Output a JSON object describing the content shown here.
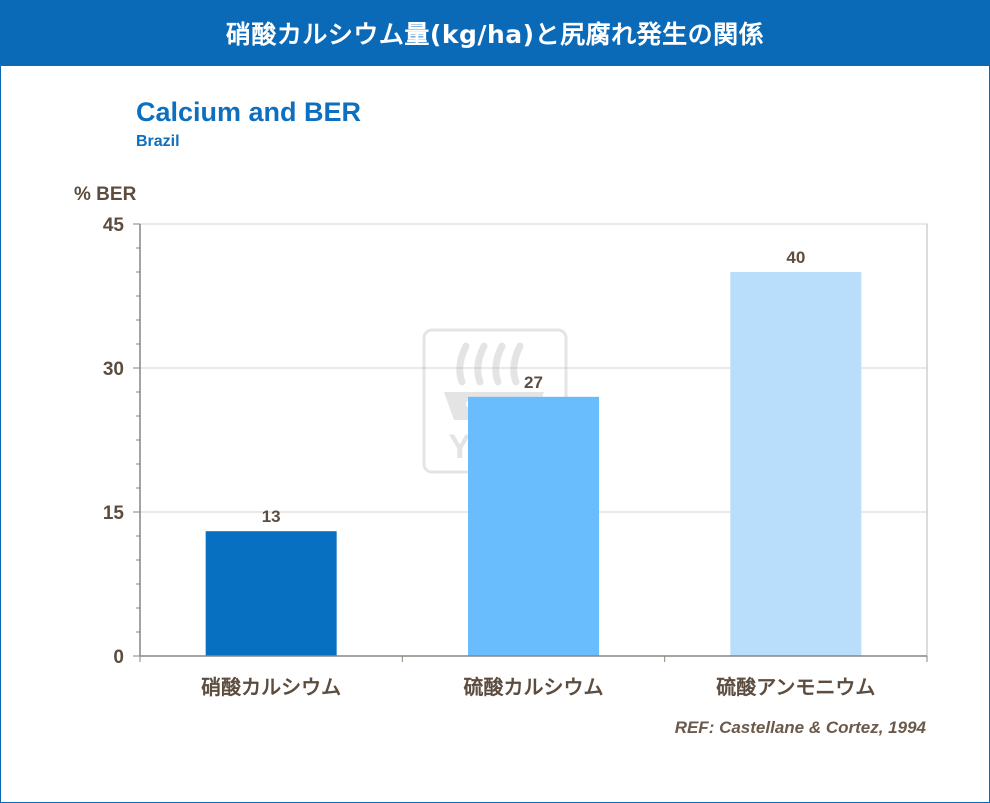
{
  "banner": {
    "title": "硝酸カルシウム量(kg/ha)と尻腐れ発生の関係"
  },
  "watermark": {
    "text": "YARA"
  },
  "reference": "REF: Castellane & Cortez, 1994",
  "chart_data": {
    "type": "bar",
    "title": "Calcium and BER",
    "subtitle": "Brazil",
    "ylabel": "% BER",
    "xlabel": "",
    "ylim": [
      0,
      45
    ],
    "yticks": [
      0,
      15,
      30,
      45
    ],
    "grid": true,
    "categories": [
      "硝酸カルシウム",
      "硫酸カルシウム",
      "硫酸アンモニウム"
    ],
    "values": [
      13,
      27,
      40
    ],
    "colors": [
      "#0870c0",
      "#69bdfc",
      "#b9defb"
    ]
  }
}
